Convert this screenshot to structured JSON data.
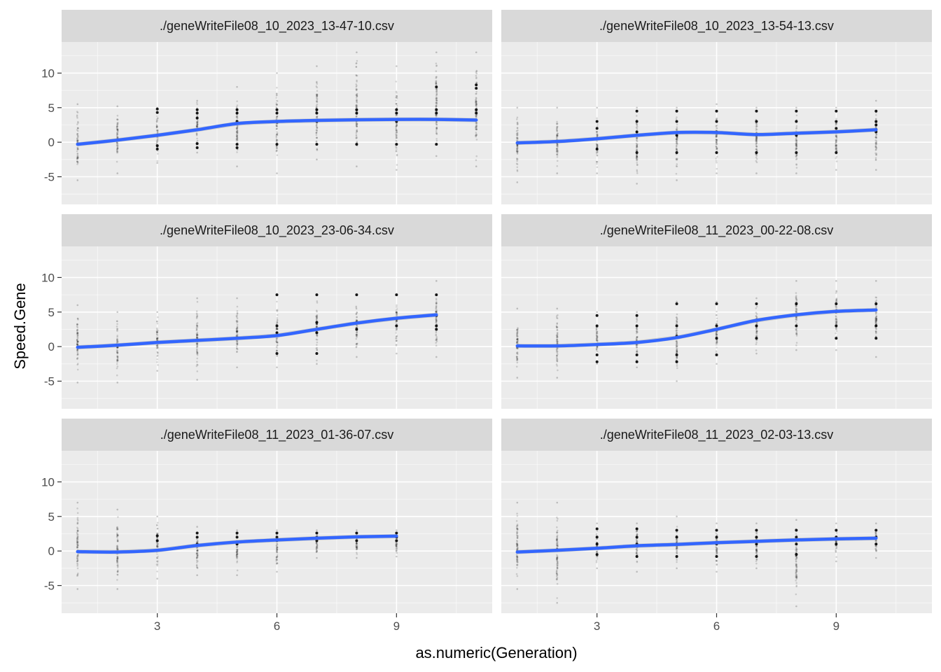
{
  "chart_data": {
    "type": "scatter",
    "facet_layout": {
      "rows": 3,
      "cols": 2
    },
    "xlabel": "as.numeric(Generation)",
    "ylabel": "Speed.Gene",
    "xlim": [
      0.6,
      11.4
    ],
    "ylim": [
      -9,
      14.5
    ],
    "x_ticks": [
      3,
      6,
      9
    ],
    "x_minor_ticks": [
      1.5,
      4.5,
      7.5,
      10.5
    ],
    "y_ticks": [
      -5,
      0,
      5,
      10
    ],
    "y_minor_ticks": [
      -7.5,
      -2.5,
      2.5,
      7.5,
      12.5
    ],
    "grid": true,
    "colors": {
      "panel_bg": "#ebebeb",
      "strip_bg": "#d9d9d9",
      "grid_major": "#ffffff",
      "smooth_line": "#3366ff",
      "confidence_band": "#999999",
      "points": "#000000"
    },
    "panels": [
      {
        "title": "./geneWriteFile08_10_2023_13-47-10.csv",
        "generations": [
          1,
          2,
          3,
          4,
          5,
          6,
          7,
          8,
          9,
          10,
          11
        ],
        "smooth": [
          -0.3,
          0.3,
          1.0,
          1.8,
          2.7,
          3.0,
          3.15,
          3.25,
          3.3,
          3.3,
          3.2
        ],
        "points": [
          {
            "x": 1,
            "lo": -5.5,
            "hi": 5.5
          },
          {
            "x": 2,
            "lo": -4.5,
            "hi": 5.2
          },
          {
            "x": 3,
            "lo": -3,
            "hi": 5
          },
          {
            "x": 4,
            "lo": -1.5,
            "hi": 6
          },
          {
            "x": 5,
            "lo": -3.5,
            "hi": 8
          },
          {
            "x": 6,
            "lo": -4.5,
            "hi": 10
          },
          {
            "x": 7,
            "lo": -2.5,
            "hi": 11
          },
          {
            "x": 8,
            "lo": -3.5,
            "hi": 13
          },
          {
            "x": 9,
            "lo": -4,
            "hi": 11
          },
          {
            "x": 10,
            "lo": -2,
            "hi": 13
          },
          {
            "x": 11,
            "lo": -3.5,
            "hi": 13
          }
        ],
        "clusters": [
          {
            "x": 3,
            "values": [
              4.8,
              4.3,
              -0.5,
              -1
            ]
          },
          {
            "x": 4,
            "values": [
              4.7,
              4.2,
              3.5,
              -0.2,
              -0.8
            ]
          },
          {
            "x": 5,
            "values": [
              4.7,
              4.2,
              3,
              -0.3,
              -0.8
            ]
          },
          {
            "x": 6,
            "values": [
              4.7,
              4.2,
              3,
              -0.3
            ]
          },
          {
            "x": 7,
            "values": [
              4.7,
              4.2,
              3,
              -0.3
            ]
          },
          {
            "x": 8,
            "values": [
              4.7,
              4.2,
              -0.3
            ]
          },
          {
            "x": 9,
            "values": [
              4.7,
              4.2,
              3,
              -0.3
            ]
          },
          {
            "x": 10,
            "values": [
              4.7,
              4.2,
              8,
              -0.3
            ]
          },
          {
            "x": 11,
            "values": [
              4.7,
              4.2,
              8.3,
              7.8
            ]
          }
        ]
      },
      {
        "title": "./geneWriteFile08_10_2023_13-54-13.csv",
        "generations": [
          1,
          2,
          3,
          4,
          5,
          6,
          7,
          8,
          9,
          10
        ],
        "smooth": [
          -0.1,
          0.1,
          0.5,
          1.0,
          1.4,
          1.4,
          1.1,
          1.3,
          1.5,
          1.8
        ],
        "points": [
          {
            "x": 1,
            "lo": -5.8,
            "hi": 5
          },
          {
            "x": 2,
            "lo": -4.5,
            "hi": 5
          },
          {
            "x": 3,
            "lo": -4.5,
            "hi": 5
          },
          {
            "x": 4,
            "lo": -6,
            "hi": 5
          },
          {
            "x": 5,
            "lo": -5.5,
            "hi": 5
          },
          {
            "x": 6,
            "lo": -4.5,
            "hi": 5.5
          },
          {
            "x": 7,
            "lo": -4.5,
            "hi": 5
          },
          {
            "x": 8,
            "lo": -4.5,
            "hi": 5
          },
          {
            "x": 9,
            "lo": -4,
            "hi": 5
          },
          {
            "x": 10,
            "lo": -4,
            "hi": 6
          }
        ],
        "clusters": [
          {
            "x": 3,
            "values": [
              3,
              2,
              0.5,
              -1
            ]
          },
          {
            "x": 4,
            "values": [
              4.5,
              3,
              1.5,
              -1.5
            ]
          },
          {
            "x": 5,
            "values": [
              4.5,
              3,
              1,
              -1.5
            ]
          },
          {
            "x": 6,
            "values": [
              4.5,
              3,
              1.5,
              -1.5
            ]
          },
          {
            "x": 7,
            "values": [
              4.5,
              3,
              1,
              -1.5
            ]
          },
          {
            "x": 8,
            "values": [
              4.5,
              3,
              1,
              -1.5
            ]
          },
          {
            "x": 9,
            "values": [
              4.5,
              3,
              2,
              -1.5
            ]
          },
          {
            "x": 10,
            "values": [
              4.5,
              3,
              2.5,
              1.5
            ]
          }
        ]
      },
      {
        "title": "./geneWriteFile08_10_2023_23-06-34.csv",
        "generations": [
          1,
          2,
          3,
          4,
          5,
          6,
          7,
          8,
          9,
          10
        ],
        "smooth": [
          -0.1,
          0.2,
          0.6,
          0.9,
          1.2,
          1.6,
          2.5,
          3.4,
          4.1,
          4.6
        ],
        "points": [
          {
            "x": 1,
            "lo": -5.2,
            "hi": 6
          },
          {
            "x": 2,
            "lo": -5.2,
            "hi": 5
          },
          {
            "x": 3,
            "lo": -3.5,
            "hi": 5
          },
          {
            "x": 4,
            "lo": -4.8,
            "hi": 7
          },
          {
            "x": 5,
            "lo": -3,
            "hi": 7
          },
          {
            "x": 6,
            "lo": -3,
            "hi": 7.5
          },
          {
            "x": 7,
            "lo": -2.5,
            "hi": 7.5
          },
          {
            "x": 8,
            "lo": -1.5,
            "hi": 7.5
          },
          {
            "x": 9,
            "lo": -1,
            "hi": 7.5
          },
          {
            "x": 10,
            "lo": -1.5,
            "hi": 9.5
          }
        ],
        "clusters": [
          {
            "x": 6,
            "values": [
              7.5,
              3,
              2,
              -1
            ]
          },
          {
            "x": 7,
            "values": [
              7.5,
              3.5,
              2,
              -1
            ]
          },
          {
            "x": 8,
            "values": [
              7.5,
              3.5,
              2.5
            ]
          },
          {
            "x": 9,
            "values": [
              7.5,
              4,
              3
            ]
          },
          {
            "x": 10,
            "values": [
              7.5,
              4.5,
              3,
              2.5
            ]
          }
        ]
      },
      {
        "title": "./geneWriteFile08_11_2023_00-22-08.csv",
        "generations": [
          1,
          2,
          3,
          4,
          5,
          6,
          7,
          8,
          9,
          10
        ],
        "smooth": [
          0.1,
          0.1,
          0.3,
          0.6,
          1.3,
          2.5,
          3.8,
          4.6,
          5.1,
          5.3
        ],
        "points": [
          {
            "x": 1,
            "lo": -4.5,
            "hi": 5.5
          },
          {
            "x": 2,
            "lo": -4.5,
            "hi": 5.5
          },
          {
            "x": 3,
            "lo": -2.5,
            "hi": 5
          },
          {
            "x": 4,
            "lo": -3,
            "hi": 5
          },
          {
            "x": 5,
            "lo": -5,
            "hi": 6.5
          },
          {
            "x": 6,
            "lo": -2.5,
            "hi": 6.5
          },
          {
            "x": 7,
            "lo": -1,
            "hi": 7
          },
          {
            "x": 8,
            "lo": -0.5,
            "hi": 9.5
          },
          {
            "x": 9,
            "lo": -0.5,
            "hi": 9.5
          },
          {
            "x": 10,
            "lo": -1.5,
            "hi": 9.5
          }
        ],
        "clusters": [
          {
            "x": 3,
            "values": [
              4.5,
              3,
              -1.2,
              -2.2
            ]
          },
          {
            "x": 4,
            "values": [
              4.5,
              3,
              -1.2,
              -2.2
            ]
          },
          {
            "x": 5,
            "values": [
              6.2,
              3,
              1.5,
              -1.2,
              -2.2
            ]
          },
          {
            "x": 6,
            "values": [
              6.2,
              3,
              1.2,
              -1.2
            ]
          },
          {
            "x": 7,
            "values": [
              6.2,
              3,
              1.2
            ]
          },
          {
            "x": 8,
            "values": [
              6.2,
              3
            ]
          },
          {
            "x": 9,
            "values": [
              6.2,
              3,
              1.2
            ]
          },
          {
            "x": 10,
            "values": [
              6.2,
              3,
              1.2
            ]
          }
        ]
      },
      {
        "title": "./geneWriteFile08_11_2023_01-36-07.csv",
        "generations": [
          1,
          2,
          3,
          4,
          5,
          6,
          7,
          8,
          9
        ],
        "smooth": [
          -0.1,
          -0.15,
          0.1,
          0.8,
          1.3,
          1.6,
          1.85,
          2.05,
          2.15
        ],
        "points": [
          {
            "x": 1,
            "lo": -5.5,
            "hi": 7
          },
          {
            "x": 2,
            "lo": -5.5,
            "hi": 6
          },
          {
            "x": 3,
            "lo": -4,
            "hi": 5
          },
          {
            "x": 4,
            "lo": -3.5,
            "hi": 3.5
          },
          {
            "x": 5,
            "lo": -3.5,
            "hi": 3
          },
          {
            "x": 6,
            "lo": -3,
            "hi": 3
          },
          {
            "x": 7,
            "lo": -1,
            "hi": 3
          },
          {
            "x": 8,
            "lo": -1,
            "hi": 3
          },
          {
            "x": 9,
            "lo": -0.8,
            "hi": 3
          }
        ],
        "clusters": [
          {
            "x": 3,
            "values": [
              2.2,
              1.5
            ]
          },
          {
            "x": 4,
            "values": [
              2.6,
              2,
              1
            ]
          },
          {
            "x": 5,
            "values": [
              2.6,
              2,
              1
            ]
          },
          {
            "x": 6,
            "values": [
              2.6,
              2,
              1.5
            ]
          },
          {
            "x": 7,
            "values": [
              2.6,
              2,
              1.5
            ]
          },
          {
            "x": 8,
            "values": [
              2.6,
              2,
              1.5
            ]
          },
          {
            "x": 9,
            "values": [
              2.6,
              2,
              1.5
            ]
          }
        ]
      },
      {
        "title": "./geneWriteFile08_11_2023_02-03-13.csv",
        "generations": [
          1,
          2,
          3,
          4,
          5,
          6,
          7,
          8,
          9,
          10
        ],
        "smooth": [
          -0.15,
          0.1,
          0.4,
          0.75,
          0.95,
          1.2,
          1.4,
          1.6,
          1.75,
          1.85
        ],
        "points": [
          {
            "x": 1,
            "lo": -5.5,
            "hi": 7
          },
          {
            "x": 2,
            "lo": -7.5,
            "hi": 7
          },
          {
            "x": 3,
            "lo": -2.5,
            "hi": 4
          },
          {
            "x": 4,
            "lo": -3,
            "hi": 4
          },
          {
            "x": 5,
            "lo": -2.5,
            "hi": 5
          },
          {
            "x": 6,
            "lo": -3,
            "hi": 4
          },
          {
            "x": 7,
            "lo": -2.5,
            "hi": 4
          },
          {
            "x": 8,
            "lo": -8,
            "hi": 4.5
          },
          {
            "x": 9,
            "lo": -1.5,
            "hi": 4
          },
          {
            "x": 10,
            "lo": -1,
            "hi": 4
          }
        ],
        "clusters": [
          {
            "x": 3,
            "values": [
              3.2,
              2,
              1,
              -0.5
            ]
          },
          {
            "x": 4,
            "values": [
              3.2,
              2,
              1,
              -0.8
            ]
          },
          {
            "x": 5,
            "values": [
              3,
              2,
              1,
              -0.8
            ]
          },
          {
            "x": 6,
            "values": [
              3,
              2,
              1,
              -0.8
            ]
          },
          {
            "x": 7,
            "values": [
              3,
              2,
              1,
              -0.8
            ]
          },
          {
            "x": 8,
            "values": [
              3,
              2,
              1,
              -0.5
            ]
          },
          {
            "x": 9,
            "values": [
              3,
              2,
              1
            ]
          },
          {
            "x": 10,
            "values": [
              3,
              2,
              1
            ]
          }
        ]
      }
    ]
  }
}
